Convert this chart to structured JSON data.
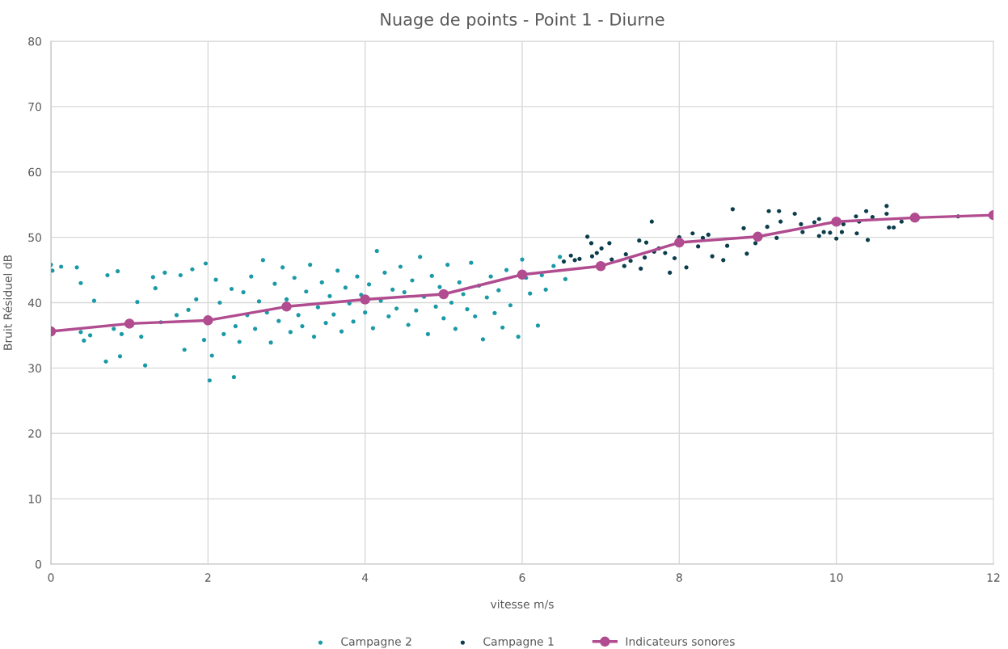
{
  "chart_data": {
    "type": "scatter",
    "title": "Nuage de points - Point 1 - Diurne",
    "xlabel": "vitesse m/s",
    "ylabel": "Bruit Résiduel dB",
    "xlim": [
      0,
      12
    ],
    "xticks": [
      0,
      2,
      4,
      6,
      8,
      10,
      12
    ],
    "ylim": [
      0,
      80
    ],
    "yticks": [
      0,
      10,
      20,
      30,
      40,
      50,
      60,
      70,
      80
    ],
    "grid": true,
    "legend": "bottom",
    "series": [
      {
        "name": "Campagne 2",
        "marker": "circle",
        "color": "#1a9aa6",
        "x": [
          0,
          0.02,
          0.13,
          0.33,
          0.38,
          0.55,
          0.38,
          0.42,
          0.5,
          0.7,
          0.72,
          0.85,
          0.88,
          0.8,
          0.9,
          1.1,
          1.2,
          1.15,
          1.3,
          1.33,
          1.45,
          1.4,
          1.6,
          1.65,
          1.7,
          1.75,
          1.8,
          1.85,
          1.95,
          2.02,
          2.05,
          1.97,
          2.1,
          2.15,
          2.2,
          2.3,
          2.33,
          2.35,
          2.4,
          2.45,
          2.5,
          2.55,
          2.6,
          2.65,
          2.7,
          2.75,
          2.8,
          2.85,
          2.9,
          2.95,
          3.0,
          3.05,
          3.1,
          3.15,
          3.2,
          3.25,
          3.3,
          3.35,
          3.4,
          3.45,
          3.5,
          3.55,
          3.6,
          3.65,
          3.7,
          3.75,
          3.8,
          3.85,
          3.9,
          3.95,
          4.0,
          4.05,
          4.1,
          4.15,
          4.2,
          4.25,
          4.3,
          4.35,
          4.4,
          4.45,
          4.5,
          4.55,
          4.6,
          4.65,
          4.7,
          4.75,
          4.8,
          4.85,
          4.9,
          4.95,
          5.0,
          5.05,
          5.1,
          5.15,
          5.2,
          5.25,
          5.3,
          5.35,
          5.4,
          5.45,
          5.5,
          5.55,
          5.6,
          5.65,
          5.7,
          5.75,
          5.8,
          5.85,
          5.95,
          6.0,
          6.05,
          6.1,
          6.2,
          6.25,
          6.3,
          6.4,
          6.48,
          6.55
        ],
        "values": [
          45.8,
          44.9,
          45.5,
          45.4,
          43.0,
          40.3,
          35.5,
          34.2,
          35.0,
          31.0,
          44.2,
          44.8,
          31.8,
          36.0,
          35.2,
          40.1,
          30.4,
          34.8,
          43.9,
          42.2,
          44.6,
          37.0,
          38.1,
          44.2,
          32.8,
          38.9,
          45.1,
          40.5,
          34.3,
          28.1,
          31.9,
          46.0,
          43.5,
          40.0,
          35.2,
          42.1,
          28.6,
          36.4,
          34.0,
          41.6,
          38.1,
          44.0,
          36.0,
          40.2,
          46.5,
          38.5,
          33.9,
          42.9,
          37.2,
          45.4,
          40.5,
          35.5,
          43.8,
          38.1,
          36.4,
          41.7,
          45.8,
          34.8,
          39.3,
          43.1,
          36.9,
          41.0,
          38.2,
          44.9,
          35.6,
          42.3,
          39.9,
          37.1,
          44.0,
          41.2,
          38.5,
          42.8,
          36.1,
          47.9,
          40.3,
          44.6,
          37.9,
          42.0,
          39.1,
          45.5,
          41.6,
          36.6,
          43.4,
          38.8,
          47.0,
          40.9,
          35.2,
          44.1,
          39.4,
          42.4,
          37.6,
          45.8,
          40.0,
          36.0,
          43.1,
          41.3,
          39.0,
          46.1,
          37.9,
          42.6,
          34.4,
          40.8,
          44.0,
          38.4,
          41.9,
          36.2,
          45.0,
          39.6,
          34.8,
          46.6,
          43.8,
          41.4,
          36.5,
          44.2,
          42.0,
          45.6,
          47.0,
          43.6
        ]
      },
      {
        "name": "Campagne 1",
        "marker": "circle",
        "color": "#0b3d4c",
        "x": [
          6.53,
          6.62,
          6.67,
          6.73,
          6.83,
          6.88,
          6.89,
          6.95,
          7.01,
          7.11,
          7.14,
          7.3,
          7.32,
          7.38,
          7.49,
          7.51,
          7.56,
          7.58,
          7.65,
          7.68,
          7.74,
          7.82,
          7.88,
          7.94,
          8.0,
          8.09,
          8.17,
          8.24,
          8.3,
          8.37,
          8.42,
          8.56,
          8.61,
          8.68,
          8.82,
          8.86,
          8.97,
          9.12,
          9.14,
          9.24,
          9.27,
          9.29,
          9.47,
          9.55,
          9.57,
          9.72,
          9.78,
          9.78,
          9.84,
          9.92,
          10.0,
          10.07,
          10.09,
          10.25,
          10.26,
          10.29,
          10.38,
          10.4,
          10.46,
          10.64,
          10.64,
          10.67,
          10.73,
          10.83,
          11.55
        ],
        "values": [
          46.3,
          47.2,
          46.5,
          46.7,
          50.1,
          49.1,
          47.1,
          47.6,
          48.3,
          49.1,
          46.6,
          45.6,
          47.4,
          46.4,
          49.5,
          45.2,
          46.9,
          49.2,
          52.4,
          47.8,
          48.3,
          47.6,
          44.6,
          46.8,
          50.0,
          45.4,
          50.6,
          48.6,
          49.9,
          50.4,
          47.1,
          46.5,
          48.7,
          54.3,
          51.4,
          47.5,
          49.1,
          51.6,
          54.0,
          49.9,
          54.0,
          52.4,
          53.6,
          52.0,
          50.8,
          52.3,
          52.8,
          50.2,
          50.8,
          50.7,
          49.8,
          50.8,
          52.0,
          53.2,
          50.6,
          52.4,
          54.0,
          49.6,
          53.1,
          54.8,
          53.6,
          51.5,
          51.5,
          52.4,
          53.2
        ]
      },
      {
        "name": "Indicateurs sonores",
        "type": "line",
        "marker": "circle",
        "line_style": "solid",
        "color": "#b04c8f",
        "x": [
          0,
          1,
          2,
          3,
          4,
          5,
          6,
          7,
          8,
          9,
          10,
          11,
          12
        ],
        "values": [
          35.6,
          36.8,
          37.3,
          39.4,
          40.5,
          41.3,
          44.3,
          45.6,
          49.2,
          50.1,
          52.4,
          53.0,
          53.4
        ]
      }
    ]
  }
}
